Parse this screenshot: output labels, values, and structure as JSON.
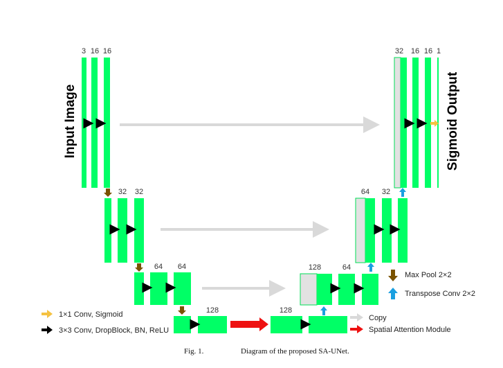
{
  "input_label": "Input Image",
  "output_label": "Sigmoid Output",
  "channels": {
    "l1_enc": [
      "3",
      "16",
      "16"
    ],
    "l1_dec": [
      "32",
      "16",
      "16",
      "1"
    ],
    "l2_enc": [
      "32",
      "32"
    ],
    "l2_dec": [
      "64",
      "32"
    ],
    "l3_enc": [
      "64",
      "64"
    ],
    "l3_dec": [
      "128",
      "64"
    ],
    "bottleneck": [
      "128",
      "128"
    ]
  },
  "legend": {
    "conv1x1": "1×1 Conv, Sigmoid",
    "conv3x3": "3×3 Conv, DropBlock, BN, ReLU",
    "maxpool": "Max Pool 2×2",
    "transpose": "Transpose Conv 2×2",
    "copy": "Copy",
    "sam": "Spatial Attention Module"
  },
  "caption": {
    "fig": "Fig. 1.",
    "text": "Diagram of the proposed SA-UNet."
  },
  "colors": {
    "block": "#00ff66",
    "copy_block": "#dcdcdc",
    "conv_arrow": "#000000",
    "pool_arrow": "#7a5200",
    "up_arrow": "#1a9fe0",
    "sigmoid_arrow": "#f5c242",
    "copy_arrow": "#d9d9d9",
    "sam_arrow": "#ee1111"
  }
}
